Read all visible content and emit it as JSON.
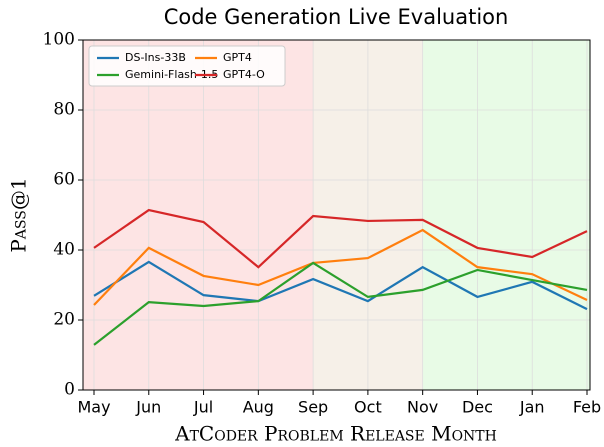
{
  "chart_data": {
    "type": "line",
    "title": "Code Generation Live Evaluation",
    "xlabel": "AtCoder Problem Release Month",
    "ylabel": "Pass@1",
    "categories": [
      "May",
      "Jun",
      "Jul",
      "Aug",
      "Sep",
      "Oct",
      "Nov",
      "Dec",
      "Jan",
      "Feb"
    ],
    "ylim": [
      0,
      100
    ],
    "yticks": [
      0,
      20,
      40,
      60,
      80,
      100
    ],
    "grid": true,
    "legend": "upper left",
    "regions": [
      {
        "from": "May",
        "to": "Sep",
        "color": "#fde4e4"
      },
      {
        "from": "Sep",
        "to": "Nov",
        "color": "#f6f0e8"
      },
      {
        "from": "Nov",
        "to": "Feb",
        "color": "#e8fbe6"
      }
    ],
    "series": [
      {
        "name": "DS-Ins-33B",
        "color": "#1f77b4",
        "values": [
          26.9,
          36.6,
          27.1,
          25.4,
          31.7,
          25.4,
          35.1,
          26.6,
          30.9,
          23.1
        ]
      },
      {
        "name": "GPT4",
        "color": "#ff7f0e",
        "values": [
          24.3,
          40.6,
          32.6,
          30.0,
          36.3,
          37.7,
          45.7,
          35.1,
          33.1,
          25.7
        ]
      },
      {
        "name": "Gemini-Flash-1.5",
        "color": "#2ca02c",
        "values": [
          12.9,
          25.1,
          24.0,
          25.4,
          36.3,
          26.6,
          28.6,
          34.3,
          31.4,
          28.6
        ]
      },
      {
        "name": "GPT4-O",
        "color": "#d62728",
        "values": [
          40.6,
          51.4,
          48.0,
          35.1,
          49.7,
          48.3,
          48.6,
          40.6,
          38.0,
          45.4
        ]
      }
    ]
  }
}
